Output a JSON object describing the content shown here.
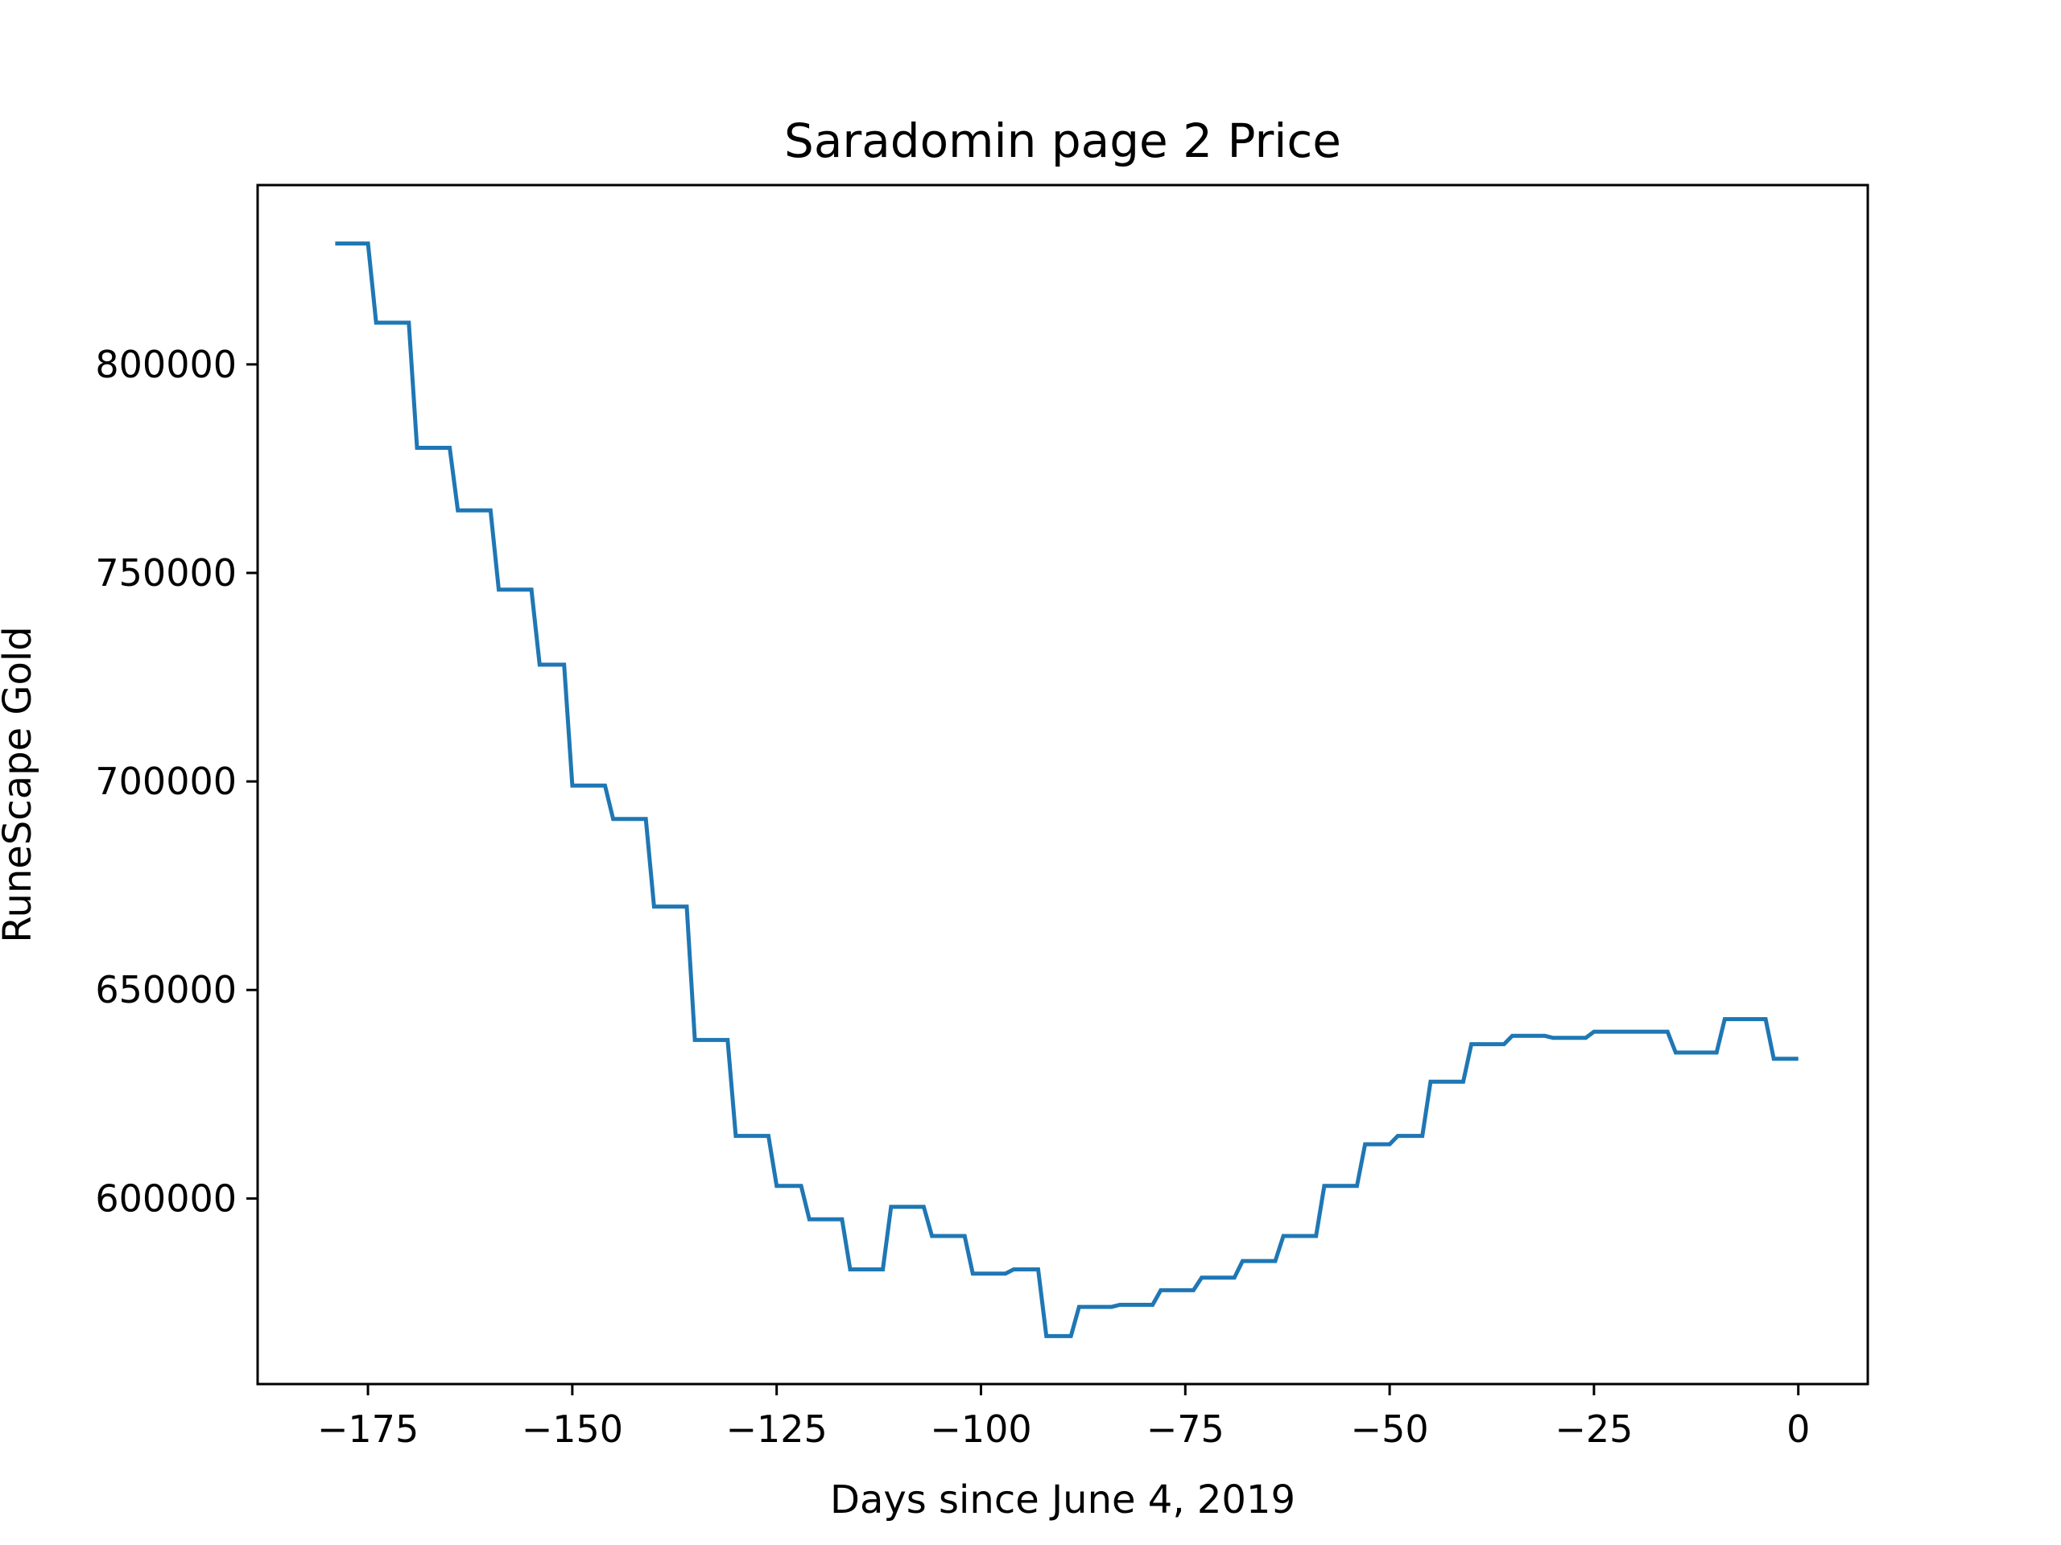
{
  "chart_data": {
    "type": "line",
    "title": "Saradomin page 2 Price",
    "xlabel": "Days since June 4, 2019",
    "ylabel": "RuneScape Gold",
    "xlim": [
      -188.5,
      8.5
    ],
    "ylim": [
      555500,
      843000
    ],
    "xticks": [
      -175,
      -150,
      -125,
      -100,
      -75,
      -50,
      -25,
      0
    ],
    "xtick_labels": [
      "−175",
      "−150",
      "−125",
      "−100",
      "−75",
      "−50",
      "−25",
      "0"
    ],
    "yticks": [
      600000,
      650000,
      700000,
      750000,
      800000
    ],
    "ytick_labels": [
      "600000",
      "650000",
      "700000",
      "750000",
      "800000"
    ],
    "grid": false,
    "color": "#1f77b4",
    "series": [
      {
        "x": [
          -179,
          -175,
          -174,
          -170,
          -169,
          -165,
          -164,
          -160,
          -159,
          -155,
          -154,
          -151,
          -150,
          -146,
          -145,
          -141,
          -140,
          -136,
          -135,
          -131,
          -130,
          -126,
          -125,
          -122,
          -121,
          -117,
          -116,
          -112,
          -111,
          -107,
          -106,
          -102,
          -101,
          -97,
          -96,
          -93,
          -92,
          -89,
          -88,
          -84,
          -83,
          -79,
          -78,
          -74,
          -73,
          -69,
          -68,
          -64,
          -63,
          -59,
          -58,
          -54,
          -53,
          -50,
          -49,
          -46,
          -45,
          -41,
          -40,
          -36,
          -35,
          -31,
          -30,
          -26,
          -25,
          -21,
          -20,
          -16,
          -15,
          -10,
          -9,
          -4,
          -3,
          0
        ],
        "y": [
          829000,
          829000,
          810000,
          810000,
          780000,
          780000,
          765000,
          765000,
          746000,
          746000,
          728000,
          728000,
          699000,
          699000,
          691000,
          691000,
          670000,
          670000,
          638000,
          638000,
          615000,
          615000,
          603000,
          603000,
          595000,
          595000,
          583000,
          583000,
          598000,
          598000,
          591000,
          591000,
          582000,
          582000,
          583000,
          583000,
          567000,
          567000,
          574000,
          574000,
          574500,
          574500,
          578000,
          578000,
          581000,
          581000,
          585000,
          585000,
          591000,
          591000,
          603000,
          603000,
          613000,
          613000,
          615000,
          615000,
          628000,
          628000,
          637000,
          637000,
          639000,
          639000,
          638500,
          638500,
          640000,
          640000,
          640000,
          640000,
          635000,
          635000,
          643000,
          643000,
          633500,
          633500
        ]
      }
    ]
  }
}
